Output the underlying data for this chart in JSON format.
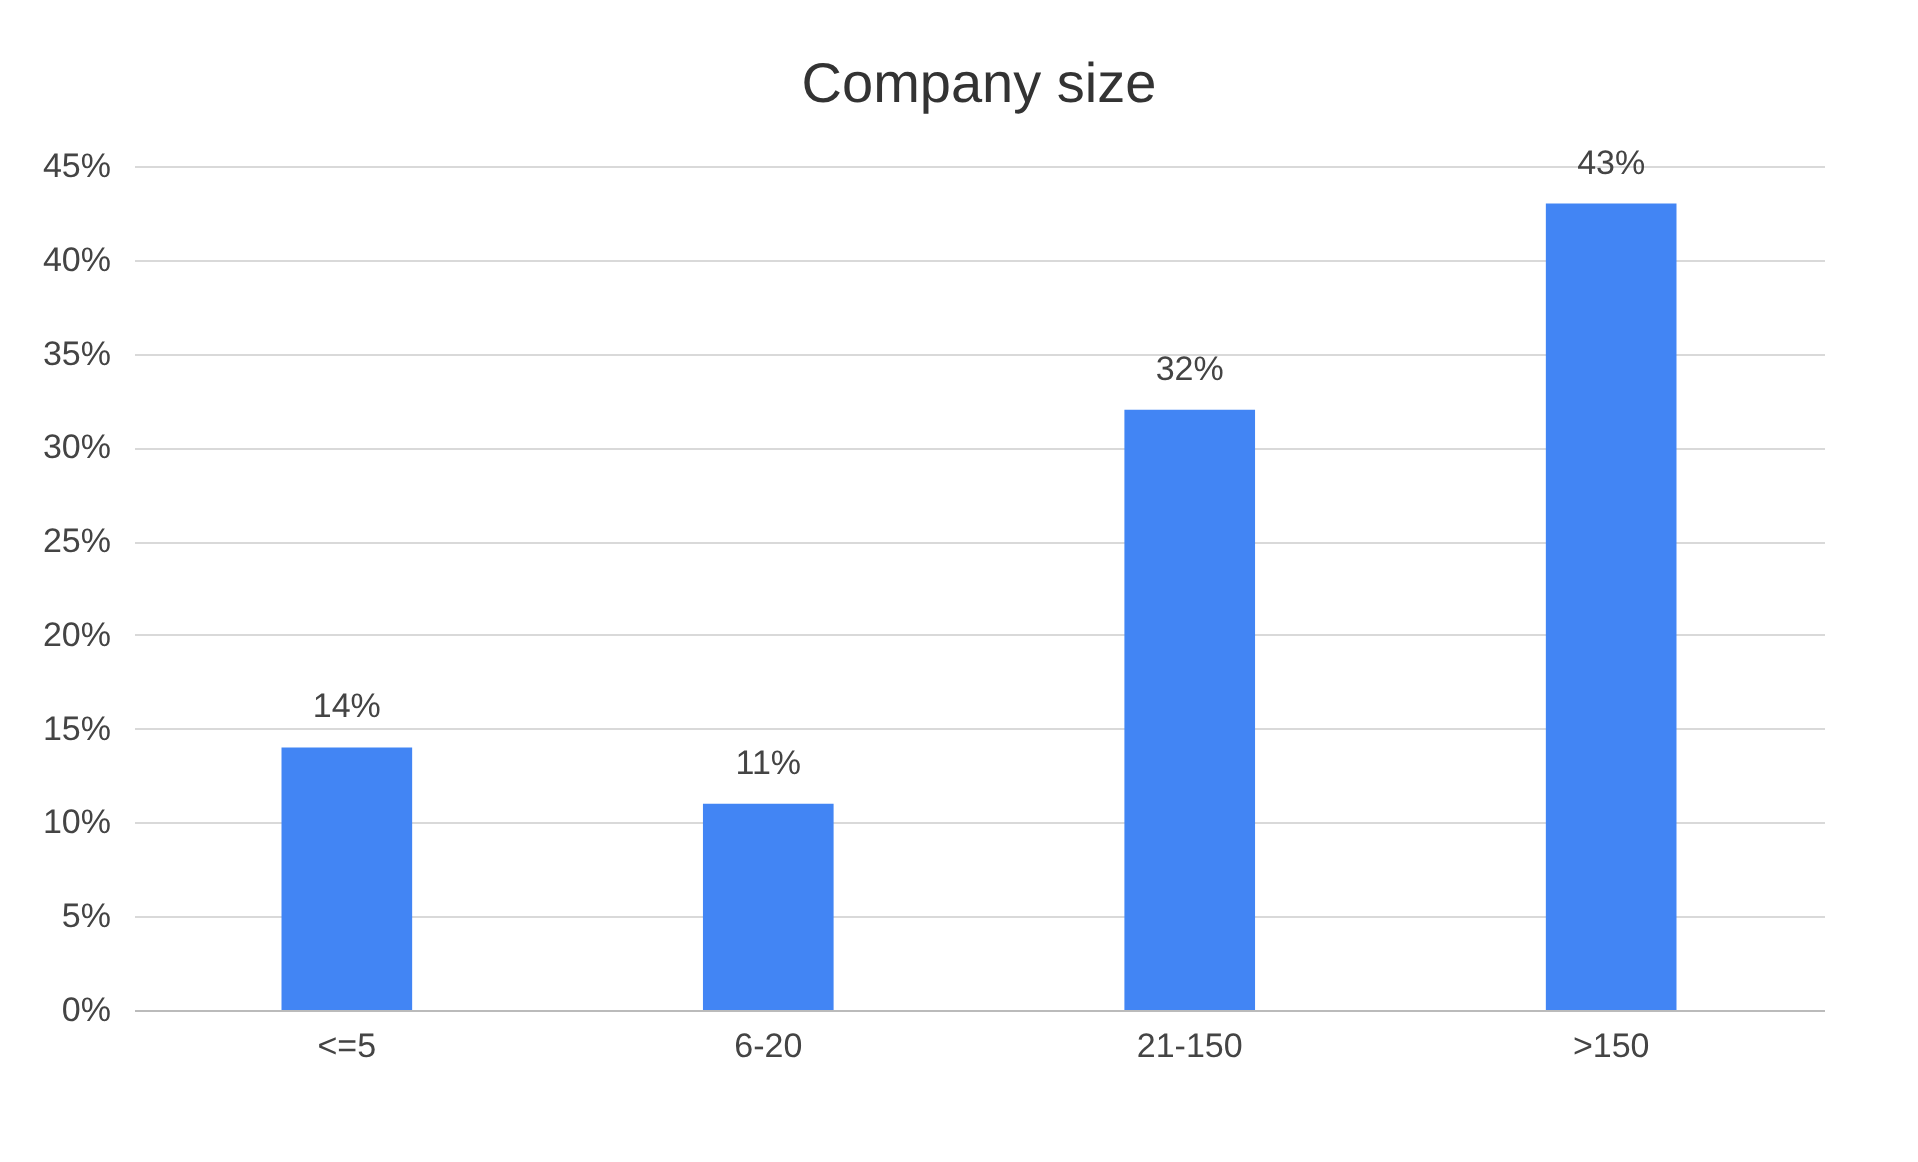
{
  "chart_data": {
    "type": "bar",
    "title": "Company size",
    "categories": [
      "<=5",
      "6-20",
      "21-150",
      ">150"
    ],
    "values": [
      14,
      11,
      32,
      43
    ],
    "value_labels": [
      "14%",
      "11%",
      "32%",
      "43%"
    ],
    "color": "#4285f4",
    "ylim": [
      0,
      45
    ],
    "yticks": [
      {
        "value": 0,
        "label": "0%"
      },
      {
        "value": 5,
        "label": "5%"
      },
      {
        "value": 10,
        "label": "10%"
      },
      {
        "value": 15,
        "label": "15%"
      },
      {
        "value": 20,
        "label": "20%"
      },
      {
        "value": 25,
        "label": "25%"
      },
      {
        "value": 30,
        "label": "30%"
      },
      {
        "value": 35,
        "label": "35%"
      },
      {
        "value": 40,
        "label": "40%"
      },
      {
        "value": 45,
        "label": "45%"
      }
    ],
    "grid": "y"
  }
}
